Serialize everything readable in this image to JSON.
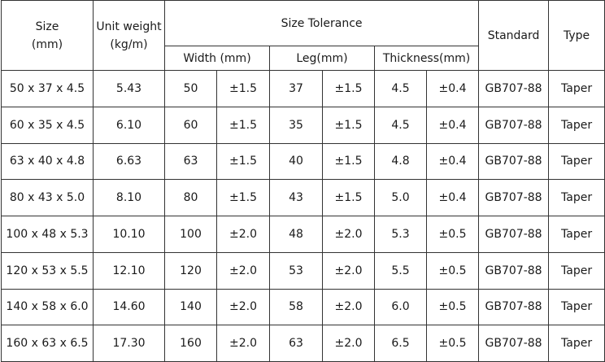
{
  "header": {
    "size_line1": "Size",
    "size_line2": "(mm)",
    "weight_line1": "Unit weight",
    "weight_line2": "(kg/m)",
    "tolerance": "Size Tolerance",
    "standard": "Standard",
    "type": "Type",
    "width": "Width (mm)",
    "leg": "Leg(mm)",
    "thickness": "Thickness(mm)"
  },
  "rows": [
    {
      "size": "50 x 37 x 4.5",
      "weight": "5.43",
      "width": "50",
      "width_tol": "±1.5",
      "leg": "37",
      "leg_tol": "±1.5",
      "thickness": "4.5",
      "thickness_tol": "±0.4",
      "standard": "GB707-88",
      "type": "Taper"
    },
    {
      "size": "60 x 35 x 4.5",
      "weight": "6.10",
      "width": "60",
      "width_tol": "±1.5",
      "leg": "35",
      "leg_tol": "±1.5",
      "thickness": "4.5",
      "thickness_tol": "±0.4",
      "standard": "GB707-88",
      "type": "Taper"
    },
    {
      "size": "63 x 40 x 4.8",
      "weight": "6.63",
      "width": "63",
      "width_tol": "±1.5",
      "leg": "40",
      "leg_tol": "±1.5",
      "thickness": "4.8",
      "thickness_tol": "±0.4",
      "standard": "GB707-88",
      "type": "Taper"
    },
    {
      "size": "80 x 43 x 5.0",
      "weight": "8.10",
      "width": "80",
      "width_tol": "±1.5",
      "leg": "43",
      "leg_tol": "±1.5",
      "thickness": "5.0",
      "thickness_tol": "±0.4",
      "standard": "GB707-88",
      "type": "Taper"
    },
    {
      "size": "100 x 48 x 5.3",
      "weight": "10.10",
      "width": "100",
      "width_tol": "±2.0",
      "leg": "48",
      "leg_tol": "±2.0",
      "thickness": "5.3",
      "thickness_tol": "±0.5",
      "standard": "GB707-88",
      "type": "Taper"
    },
    {
      "size": "120 x 53 x 5.5",
      "weight": "12.10",
      "width": "120",
      "width_tol": "±2.0",
      "leg": "53",
      "leg_tol": "±2.0",
      "thickness": "5.5",
      "thickness_tol": "±0.5",
      "standard": "GB707-88",
      "type": "Taper"
    },
    {
      "size": "140 x 58 x 6.0",
      "weight": "14.60",
      "width": "140",
      "width_tol": "±2.0",
      "leg": "58",
      "leg_tol": "±2.0",
      "thickness": "6.0",
      "thickness_tol": "±0.5",
      "standard": "GB707-88",
      "type": "Taper"
    },
    {
      "size": "160 x 63 x 6.5",
      "weight": "17.30",
      "width": "160",
      "width_tol": "±2.0",
      "leg": "63",
      "leg_tol": "±2.0",
      "thickness": "6.5",
      "thickness_tol": "±0.5",
      "standard": "GB707-88",
      "type": "Taper"
    }
  ]
}
